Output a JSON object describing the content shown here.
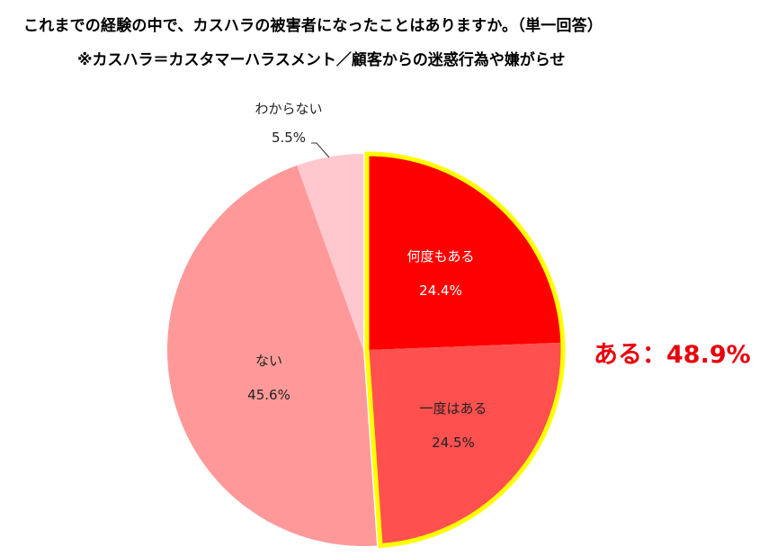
{
  "chart_data": {
    "type": "pie",
    "title": "これまでの経験の中で、カスハラの被害者になったことはありますか。（単一回答）",
    "subtitle": "※カスハラ＝カスタマーハラスメント／顧客からの迷惑行為や嫌がらせ",
    "categories": [
      "何度もある",
      "一度はある",
      "ない",
      "わからない"
    ],
    "values": [
      24.4,
      24.5,
      45.6,
      5.5
    ],
    "value_labels": [
      "24.4%",
      "24.5%",
      "45.6%",
      "5.5%"
    ],
    "colors": [
      "#ff0000",
      "#ff5050",
      "#ff9999",
      "#ffc7ce"
    ],
    "highlight_group": {
      "label": "ある",
      "members": [
        "何度もある",
        "一度はある"
      ],
      "total": 48.9,
      "border_color": "#ffff00",
      "text": "ある：48.9%",
      "text_color": "#e8000b"
    },
    "start_angle_deg": 0,
    "direction": "clockwise",
    "legend": "none"
  }
}
